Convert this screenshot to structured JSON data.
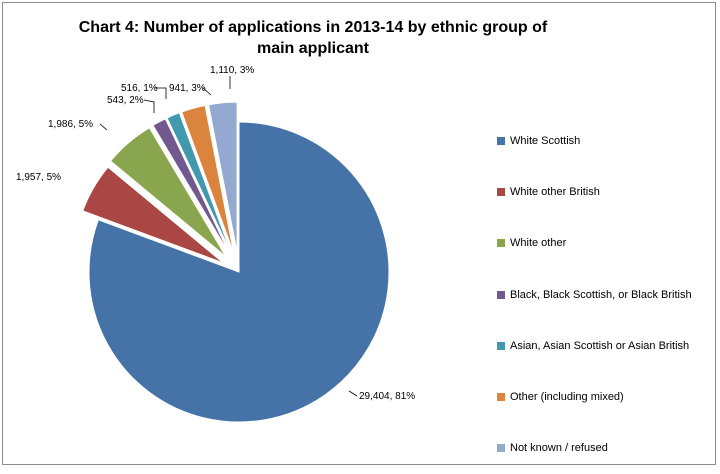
{
  "chart_data": {
    "type": "pie",
    "title": "Chart 4:   Number of applications in 2013-14 by ethnic group of main applicant",
    "categories": [
      "White Scottish",
      "White other British",
      "White other",
      "Black, Black Scottish, or Black British",
      "Asian, Asian Scottish or Asian British",
      "Other (including mixed)",
      "Not known / refused"
    ],
    "values": [
      29404,
      1957,
      1986,
      543,
      516,
      941,
      1110
    ],
    "percent_labels": [
      "81%",
      "5%",
      "5%",
      "2%",
      "1%",
      "3%",
      "3%"
    ],
    "data_labels": [
      "29,404, 81%",
      "1,957, 5%",
      "1,986, 5%",
      "543, 2%",
      "516, 1%",
      "941, 3%",
      "1,110, 3%"
    ],
    "colors": [
      "#4572a7",
      "#aa4643",
      "#89a54e",
      "#71588f",
      "#4198af",
      "#db843d",
      "#93a9cf"
    ],
    "exploded": true,
    "legend_position": "right"
  }
}
